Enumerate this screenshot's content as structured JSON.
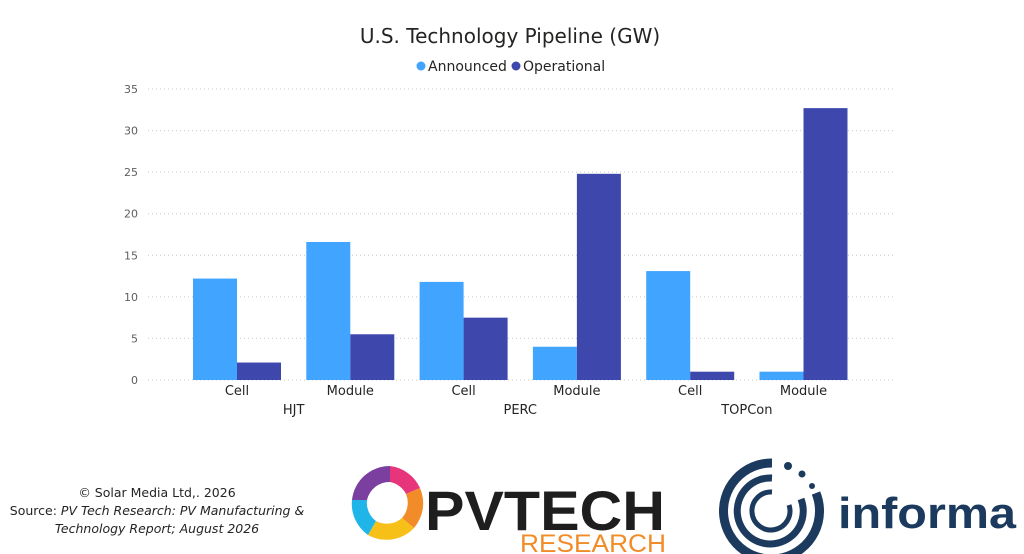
{
  "chart_data": {
    "type": "bar",
    "title": "U.S. Technology Pipeline (GW)",
    "xlabel": "",
    "ylabel": "",
    "ylim": [
      0,
      35
    ],
    "yticks": [
      0,
      5,
      10,
      15,
      20,
      25,
      30,
      35
    ],
    "grid": true,
    "legend_position": "top-center",
    "groups": [
      {
        "name": "HJT",
        "categories": [
          "Cell",
          "Module"
        ]
      },
      {
        "name": "PERC",
        "categories": [
          "Cell",
          "Module"
        ]
      },
      {
        "name": "TOPCon",
        "categories": [
          "Cell",
          "Module"
        ]
      }
    ],
    "categories": [
      "Cell",
      "Module",
      "Cell",
      "Module",
      "Cell",
      "Module"
    ],
    "series": [
      {
        "name": "Announced",
        "color": "#41a4ff",
        "values": [
          12.2,
          16.6,
          11.8,
          4.0,
          13.1,
          1.0
        ]
      },
      {
        "name": "Operational",
        "color": "#3e48ac",
        "values": [
          2.1,
          5.5,
          7.5,
          24.8,
          1.0,
          32.7
        ]
      }
    ]
  },
  "footer": {
    "copyright": "© Solar Media Ltd,. 2026",
    "source_prefix": "Source: ",
    "source_line1": "PV Tech Research: PV Manufacturing &",
    "source_line2": "Technology Report; August 2026"
  },
  "logos": {
    "pvtech_main": "PVTECH",
    "pvtech_sub": "RESEARCH",
    "informa": "informa"
  }
}
